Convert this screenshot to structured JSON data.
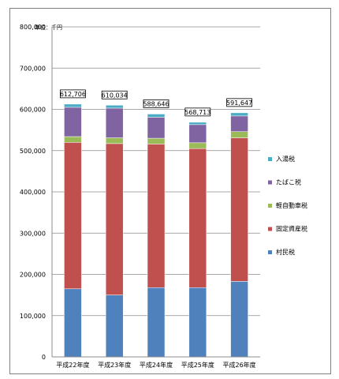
{
  "chart_data": {
    "type": "bar",
    "stacked": true,
    "unit_label": "単位：千円",
    "categories": [
      "平成22年度",
      "平成23年度",
      "平成24年度",
      "平成25年度",
      "平成26年度"
    ],
    "ylim": [
      0,
      800000
    ],
    "y_ticks": [
      "0",
      "100,000",
      "200,000",
      "300,000",
      "400,000",
      "500,000",
      "600,000",
      "700,000",
      "800,000"
    ],
    "series": [
      {
        "name": "村民税",
        "color": "#4f81bd",
        "values": [
          165000,
          150000,
          168000,
          168000,
          183000
        ]
      },
      {
        "name": "固定資産税",
        "color": "#c0504d",
        "values": [
          355000,
          367000,
          348000,
          337000,
          348000
        ]
      },
      {
        "name": "軽自動車税",
        "color": "#9bbb59",
        "values": [
          14000,
          14000,
          14000,
          14000,
          15000
        ]
      },
      {
        "name": "たばこ税",
        "color": "#8064a2",
        "values": [
          71000,
          72000,
          51000,
          44000,
          38000
        ]
      },
      {
        "name": "入湯税",
        "color": "#4bacc6",
        "values": [
          7706,
          7034,
          7646,
          5713,
          7647
        ]
      }
    ],
    "totals": [
      "612,706",
      "610,034",
      "588,646",
      "568,713",
      "591,647"
    ],
    "grid": true,
    "legend_position": "right"
  }
}
